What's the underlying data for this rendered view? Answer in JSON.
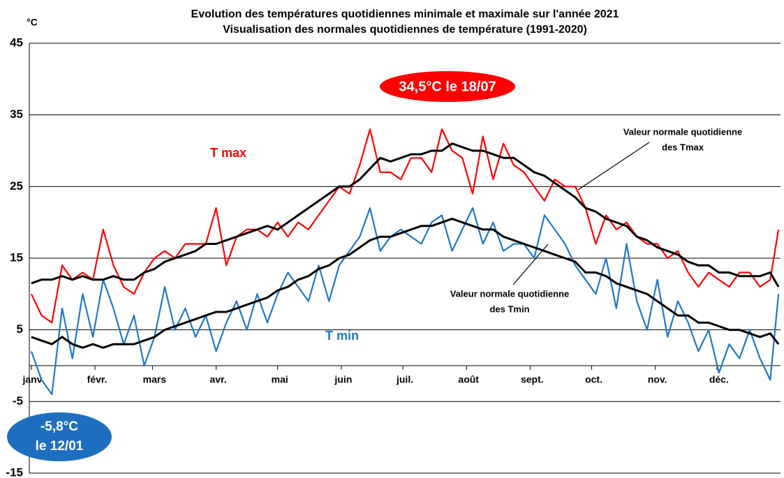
{
  "chart_data": {
    "type": "line",
    "title": "Evolution des températures quotidiennes minimale et maximale sur l'année 2021",
    "subtitle": "Visualisation des normales quotidiennes de température (1991-2020)",
    "ylabel": "°C",
    "x": [
      1,
      6,
      11,
      16,
      21,
      26,
      31,
      36,
      41,
      46,
      51,
      56,
      61,
      66,
      71,
      76,
      81,
      86,
      91,
      96,
      101,
      106,
      111,
      116,
      121,
      126,
      131,
      136,
      141,
      146,
      151,
      156,
      161,
      166,
      171,
      176,
      181,
      186,
      191,
      196,
      201,
      206,
      211,
      216,
      221,
      226,
      231,
      236,
      241,
      246,
      251,
      256,
      261,
      266,
      271,
      276,
      281,
      286,
      291,
      296,
      301,
      306,
      311,
      316,
      321,
      326,
      331,
      336,
      341,
      346,
      351,
      356,
      361,
      365
    ],
    "series": [
      {
        "name": "T max",
        "color": "#ff0000",
        "width": 2.2,
        "values": [
          10,
          7,
          6,
          14,
          12,
          13,
          12,
          19,
          14,
          11,
          10,
          13,
          15,
          16,
          15,
          17,
          17,
          17,
          22,
          14,
          18,
          19,
          19,
          18,
          20,
          18,
          20,
          19,
          21,
          23,
          25,
          24,
          28,
          33,
          27,
          27,
          26,
          29,
          29,
          27,
          33,
          30,
          29,
          24,
          32,
          26,
          31,
          28,
          27,
          25,
          23,
          26,
          25,
          25,
          22,
          17,
          21,
          19,
          20,
          18,
          17,
          17,
          15,
          16,
          13,
          11,
          13,
          12,
          11,
          13,
          13,
          11,
          12,
          19
        ]
      },
      {
        "name": "T min",
        "color": "#1f78c8",
        "width": 2.2,
        "values": [
          2,
          -2,
          -4,
          8,
          1,
          10,
          4,
          12,
          8,
          3,
          7,
          0,
          4,
          11,
          5,
          8,
          4,
          7,
          2,
          6,
          9,
          5,
          10,
          6,
          10,
          13,
          11,
          9,
          14,
          9,
          14,
          16,
          18,
          22,
          16,
          18,
          19,
          18,
          17,
          20,
          21,
          16,
          19,
          22,
          17,
          20,
          16,
          17,
          17,
          15,
          21,
          19,
          17,
          14,
          12,
          10,
          15,
          8,
          17,
          9,
          5,
          12,
          4,
          9,
          6,
          2,
          5,
          -1,
          3,
          1,
          5,
          1,
          -2,
          10
        ]
      },
      {
        "name": "Valeur normale quotidienne des Tmax",
        "color": "#000000",
        "width": 3,
        "values": [
          11.5,
          12,
          12,
          12.5,
          12,
          12.5,
          12,
          12,
          12.5,
          12,
          12,
          13,
          13.5,
          14.5,
          15,
          15.5,
          16,
          17,
          17,
          17.5,
          18,
          18.5,
          19,
          19.5,
          19,
          20,
          21,
          22,
          23,
          24,
          25,
          25,
          26,
          27.5,
          29,
          28.5,
          29,
          29.5,
          29.5,
          30,
          30,
          31,
          30.5,
          30,
          30,
          29.5,
          29,
          29,
          28,
          27,
          26.5,
          25.5,
          24.5,
          23.5,
          22,
          21.5,
          20.5,
          20,
          19.5,
          18,
          17.5,
          16.5,
          16,
          15.5,
          14.5,
          14,
          14,
          13,
          13,
          12.5,
          12.5,
          12.5,
          13,
          11
        ]
      },
      {
        "name": "Valeur normale quotidienne des Tmin",
        "color": "#000000",
        "width": 3,
        "values": [
          4,
          3.5,
          3,
          4,
          3,
          2.5,
          3,
          2.5,
          3,
          3,
          3,
          3.5,
          4,
          5,
          5.5,
          6,
          6.5,
          7,
          7.5,
          7.5,
          8,
          8.5,
          9,
          9.5,
          10.5,
          11,
          12,
          12.5,
          13.5,
          14,
          15,
          15.5,
          16.5,
          17.5,
          18,
          18,
          18.5,
          19,
          19.5,
          19.5,
          20,
          20.5,
          20,
          19.5,
          19,
          19,
          18,
          17.5,
          17,
          16.5,
          16,
          15.5,
          15,
          14.5,
          13,
          13,
          12.5,
          11.5,
          11,
          10.5,
          10,
          9,
          8,
          7,
          7,
          6,
          6,
          5.5,
          5,
          5,
          4.5,
          4,
          4.5,
          3
        ]
      }
    ],
    "xlim": [
      0,
      366
    ],
    "xticks": [
      {
        "value": 1,
        "label": "janv."
      },
      {
        "value": 32,
        "label": "févr."
      },
      {
        "value": 60,
        "label": "mars"
      },
      {
        "value": 91,
        "label": "avr."
      },
      {
        "value": 121,
        "label": "mai"
      },
      {
        "value": 152,
        "label": "juin"
      },
      {
        "value": 182,
        "label": "juil."
      },
      {
        "value": 213,
        "label": "août"
      },
      {
        "value": 244,
        "label": "sept."
      },
      {
        "value": 274,
        "label": "oct."
      },
      {
        "value": 305,
        "label": "nov."
      },
      {
        "value": 335,
        "label": "déc."
      }
    ],
    "ylim": [
      -15,
      45
    ],
    "yticks": [
      -15,
      -5,
      5,
      15,
      25,
      35,
      45
    ],
    "grid": true,
    "annotations": [
      [
        "T max"
      ],
      [
        "T min"
      ],
      [
        "Valeur normale quotidienne",
        "des Tmax"
      ],
      [
        "Valeur normale quotidienne",
        "des Tmin"
      ],
      [
        "34,5°C le 18/07"
      ],
      [
        "-5,8°C",
        "le 12/01"
      ]
    ]
  }
}
